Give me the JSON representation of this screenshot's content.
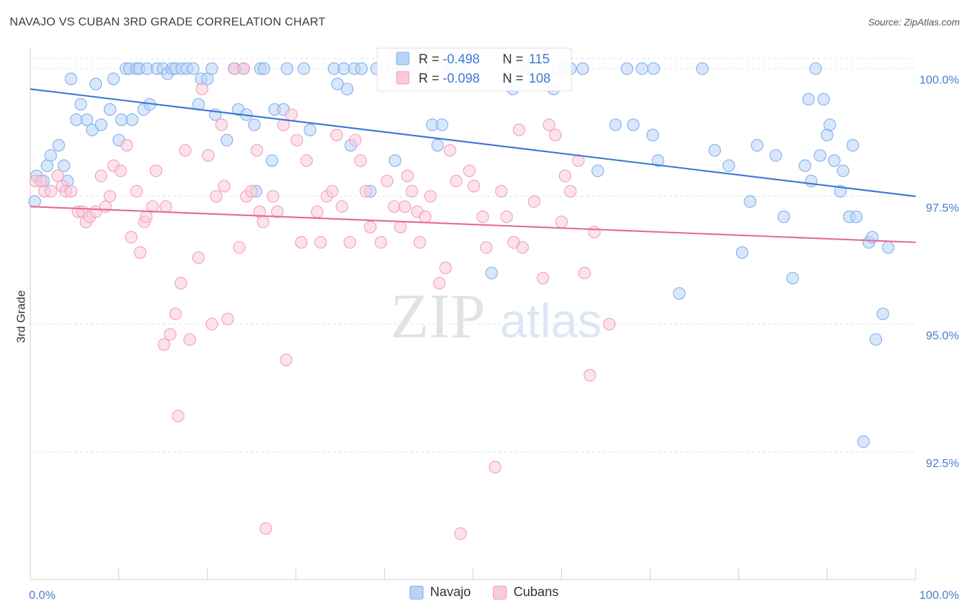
{
  "header": {
    "title": "NAVAJO VS CUBAN 3RD GRADE CORRELATION CHART",
    "source": "Source: ZipAtlas.com"
  },
  "watermark": {
    "zip": "ZIP",
    "atlas": "atlas"
  },
  "chart_data": {
    "type": "scatter",
    "xlabel": "",
    "ylabel": "3rd Grade",
    "xlim": [
      0,
      100
    ],
    "ylim": [
      90.0,
      100.4
    ],
    "x_tick_labels": [
      "0.0%",
      "100.0%"
    ],
    "y_ticks": [
      {
        "value": 100.0,
        "label": "100.0%"
      },
      {
        "value": 97.5,
        "label": "97.5%"
      },
      {
        "value": 95.0,
        "label": "95.0%"
      },
      {
        "value": 92.5,
        "label": "92.5%"
      }
    ],
    "grid": "horizontal-dashed",
    "legend_placement": "top-center",
    "series": [
      {
        "name": "Navajo",
        "color": "#7aaef0",
        "fill": "#b9d3f6",
        "line_color": "#3a78d4",
        "stats": {
          "r_label": "R =",
          "r": "-0.498",
          "n_label": "N =",
          "n": "115"
        },
        "trend": {
          "x": [
            0,
            100
          ],
          "y": [
            99.6,
            97.5
          ]
        },
        "points": [
          [
            0.5,
            97.4
          ],
          [
            0.7,
            97.9
          ],
          [
            1.5,
            97.8
          ],
          [
            1.9,
            98.1
          ],
          [
            2.3,
            98.3
          ],
          [
            3.2,
            98.5
          ],
          [
            3.8,
            98.1
          ],
          [
            4.2,
            97.8
          ],
          [
            4.6,
            99.8
          ],
          [
            5.2,
            99.0
          ],
          [
            5.7,
            99.3
          ],
          [
            6.4,
            99.0
          ],
          [
            7.0,
            98.8
          ],
          [
            7.4,
            99.7
          ],
          [
            8.0,
            98.9
          ],
          [
            9.0,
            99.2
          ],
          [
            9.4,
            99.8
          ],
          [
            10.0,
            98.6
          ],
          [
            10.3,
            99.0
          ],
          [
            10.8,
            100.0
          ],
          [
            11.2,
            100.0
          ],
          [
            11.5,
            99.0
          ],
          [
            12.0,
            100.0
          ],
          [
            12.3,
            100.0
          ],
          [
            12.8,
            99.2
          ],
          [
            13.2,
            100.0
          ],
          [
            13.5,
            99.3
          ],
          [
            14.3,
            100.0
          ],
          [
            15.0,
            100.0
          ],
          [
            15.5,
            99.9
          ],
          [
            16.0,
            100.0
          ],
          [
            16.4,
            100.0
          ],
          [
            17.1,
            100.0
          ],
          [
            17.7,
            100.0
          ],
          [
            18.4,
            100.0
          ],
          [
            19.0,
            99.3
          ],
          [
            19.3,
            99.8
          ],
          [
            20.0,
            99.8
          ],
          [
            20.5,
            100.0
          ],
          [
            20.9,
            99.1
          ],
          [
            22.2,
            98.6
          ],
          [
            23.1,
            100.0
          ],
          [
            23.5,
            99.2
          ],
          [
            24.1,
            100.0
          ],
          [
            24.4,
            99.1
          ],
          [
            25.3,
            98.9
          ],
          [
            25.5,
            97.6
          ],
          [
            26.0,
            100.0
          ],
          [
            26.4,
            100.0
          ],
          [
            27.3,
            98.2
          ],
          [
            27.6,
            99.2
          ],
          [
            28.6,
            99.2
          ],
          [
            29.0,
            100.0
          ],
          [
            30.9,
            100.0
          ],
          [
            31.6,
            98.8
          ],
          [
            34.3,
            100.0
          ],
          [
            34.7,
            99.7
          ],
          [
            35.4,
            100.0
          ],
          [
            35.8,
            99.6
          ],
          [
            36.2,
            98.5
          ],
          [
            36.6,
            100.0
          ],
          [
            37.4,
            100.0
          ],
          [
            38.4,
            97.6
          ],
          [
            39.1,
            100.0
          ],
          [
            40.9,
            100.0
          ],
          [
            41.2,
            98.2
          ],
          [
            42.1,
            100.0
          ],
          [
            44.4,
            100.0
          ],
          [
            45.4,
            98.9
          ],
          [
            46.0,
            98.5
          ],
          [
            46.5,
            98.9
          ],
          [
            47.4,
            100.0
          ],
          [
            48.8,
            100.0
          ],
          [
            52.1,
            96.0
          ],
          [
            54.5,
            99.6
          ],
          [
            55.2,
            100.0
          ],
          [
            56.0,
            100.0
          ],
          [
            59.1,
            99.6
          ],
          [
            59.6,
            100.0
          ],
          [
            60.4,
            100.0
          ],
          [
            61.0,
            100.0
          ],
          [
            62.4,
            100.0
          ],
          [
            64.1,
            98.0
          ],
          [
            66.1,
            98.9
          ],
          [
            67.4,
            100.0
          ],
          [
            68.1,
            98.9
          ],
          [
            69.1,
            100.0
          ],
          [
            70.4,
            100.0
          ],
          [
            70.9,
            98.2
          ],
          [
            70.3,
            98.7
          ],
          [
            73.3,
            95.6
          ],
          [
            75.9,
            100.0
          ],
          [
            77.3,
            98.4
          ],
          [
            78.9,
            98.1
          ],
          [
            80.4,
            96.4
          ],
          [
            81.3,
            97.4
          ],
          [
            82.1,
            98.5
          ],
          [
            84.2,
            98.3
          ],
          [
            85.1,
            97.1
          ],
          [
            86.1,
            95.9
          ],
          [
            87.5,
            98.1
          ],
          [
            87.9,
            99.4
          ],
          [
            88.2,
            97.8
          ],
          [
            88.7,
            100.0
          ],
          [
            89.2,
            98.3
          ],
          [
            89.6,
            99.4
          ],
          [
            90.0,
            98.7
          ],
          [
            90.3,
            98.9
          ],
          [
            90.8,
            98.2
          ],
          [
            91.5,
            97.6
          ],
          [
            91.8,
            98.0
          ],
          [
            92.5,
            97.1
          ],
          [
            92.9,
            98.5
          ],
          [
            93.3,
            97.1
          ],
          [
            94.1,
            92.7
          ],
          [
            94.7,
            96.6
          ],
          [
            95.1,
            96.7
          ],
          [
            95.5,
            94.7
          ],
          [
            96.3,
            95.2
          ],
          [
            96.9,
            96.5
          ]
        ]
      },
      {
        "name": "Cubans",
        "color": "#f49bbb",
        "fill": "#f9cadb",
        "line_color": "#e46b98",
        "stats": {
          "r_label": "R =",
          "r": "-0.098",
          "n_label": "N =",
          "n": "108"
        },
        "trend": {
          "x": [
            0,
            100
          ],
          "y": [
            97.3,
            96.6
          ]
        },
        "points": [
          [
            0.6,
            97.8
          ],
          [
            1.2,
            97.8
          ],
          [
            1.6,
            97.6
          ],
          [
            2.3,
            97.6
          ],
          [
            3.1,
            97.9
          ],
          [
            3.6,
            97.7
          ],
          [
            4.0,
            97.6
          ],
          [
            4.6,
            97.6
          ],
          [
            5.4,
            97.2
          ],
          [
            5.9,
            97.2
          ],
          [
            6.3,
            97.0
          ],
          [
            6.7,
            97.1
          ],
          [
            7.4,
            97.2
          ],
          [
            8.0,
            97.9
          ],
          [
            8.5,
            97.3
          ],
          [
            9.0,
            97.5
          ],
          [
            9.4,
            98.1
          ],
          [
            10.2,
            98.0
          ],
          [
            10.9,
            98.5
          ],
          [
            11.4,
            96.7
          ],
          [
            12.0,
            97.6
          ],
          [
            12.4,
            96.4
          ],
          [
            12.9,
            97.0
          ],
          [
            13.1,
            97.1
          ],
          [
            13.8,
            97.3
          ],
          [
            14.2,
            98.0
          ],
          [
            15.1,
            94.6
          ],
          [
            15.3,
            97.3
          ],
          [
            15.8,
            94.8
          ],
          [
            16.4,
            95.2
          ],
          [
            16.7,
            93.2
          ],
          [
            17.0,
            95.8
          ],
          [
            17.5,
            98.4
          ],
          [
            18.0,
            94.7
          ],
          [
            19.0,
            96.3
          ],
          [
            19.4,
            99.6
          ],
          [
            20.1,
            98.3
          ],
          [
            20.5,
            95.0
          ],
          [
            21.0,
            97.5
          ],
          [
            21.6,
            98.9
          ],
          [
            21.9,
            97.7
          ],
          [
            22.3,
            95.1
          ],
          [
            23.0,
            100.0
          ],
          [
            23.6,
            96.5
          ],
          [
            24.1,
            100.0
          ],
          [
            24.4,
            97.5
          ],
          [
            25.0,
            97.6
          ],
          [
            25.6,
            98.4
          ],
          [
            25.9,
            97.2
          ],
          [
            26.3,
            97.0
          ],
          [
            26.6,
            91.0
          ],
          [
            27.4,
            97.5
          ],
          [
            27.9,
            97.2
          ],
          [
            28.6,
            98.9
          ],
          [
            28.9,
            94.3
          ],
          [
            29.5,
            99.1
          ],
          [
            30.1,
            98.6
          ],
          [
            30.6,
            96.6
          ],
          [
            31.2,
            98.2
          ],
          [
            32.4,
            97.2
          ],
          [
            32.8,
            96.6
          ],
          [
            33.5,
            97.5
          ],
          [
            34.1,
            97.6
          ],
          [
            34.6,
            98.7
          ],
          [
            35.2,
            97.3
          ],
          [
            36.1,
            96.6
          ],
          [
            36.7,
            98.6
          ],
          [
            37.3,
            98.2
          ],
          [
            37.9,
            97.6
          ],
          [
            38.4,
            96.9
          ],
          [
            39.6,
            96.6
          ],
          [
            40.3,
            97.8
          ],
          [
            41.1,
            97.3
          ],
          [
            41.8,
            96.9
          ],
          [
            42.3,
            97.3
          ],
          [
            42.6,
            97.9
          ],
          [
            43.1,
            97.6
          ],
          [
            43.7,
            97.2
          ],
          [
            44.0,
            96.6
          ],
          [
            44.6,
            97.1
          ],
          [
            45.2,
            97.5
          ],
          [
            46.2,
            95.8
          ],
          [
            46.9,
            96.1
          ],
          [
            47.4,
            98.4
          ],
          [
            48.1,
            97.8
          ],
          [
            48.6,
            90.9
          ],
          [
            49.6,
            98.0
          ],
          [
            50.1,
            97.7
          ],
          [
            51.1,
            97.1
          ],
          [
            51.5,
            96.5
          ],
          [
            52.5,
            92.2
          ],
          [
            53.2,
            97.6
          ],
          [
            53.8,
            97.1
          ],
          [
            54.6,
            96.6
          ],
          [
            55.2,
            98.8
          ],
          [
            55.6,
            96.5
          ],
          [
            56.9,
            97.4
          ],
          [
            57.9,
            95.9
          ],
          [
            58.6,
            98.9
          ],
          [
            59.3,
            98.7
          ],
          [
            60.0,
            97.0
          ],
          [
            60.4,
            97.9
          ],
          [
            61.0,
            97.6
          ],
          [
            61.9,
            98.2
          ],
          [
            62.6,
            96.0
          ],
          [
            63.2,
            94.0
          ],
          [
            63.7,
            96.8
          ],
          [
            65.4,
            95.0
          ]
        ]
      }
    ]
  }
}
